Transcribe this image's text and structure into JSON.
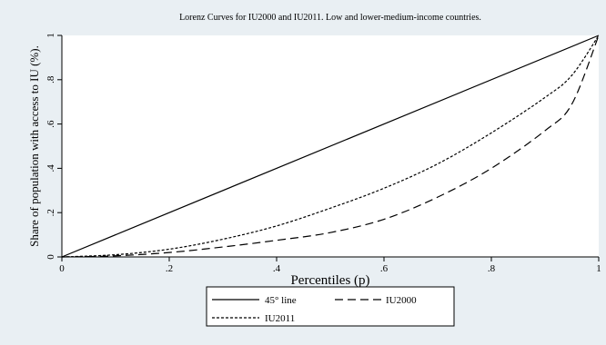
{
  "chart_data": {
    "type": "line",
    "title": "Lorenz Curves for IU2000 and IU2011. Low and lower-medium-income countries.",
    "xlabel": "Percentiles (p)",
    "ylabel": "Share of population with access to IU (%).",
    "xlim": [
      0,
      1
    ],
    "ylim": [
      0,
      1
    ],
    "xticks": [
      0,
      0.2,
      0.4,
      0.6,
      0.8,
      1
    ],
    "xtick_labels": [
      "0",
      ".2",
      ".4",
      ".6",
      ".8",
      "1"
    ],
    "yticks": [
      0,
      0.2,
      0.4,
      0.6,
      0.8,
      1
    ],
    "ytick_labels": [
      "0",
      ".2",
      ".4",
      ".6",
      ".8",
      "1"
    ],
    "grid": false,
    "legend_position": "bottom",
    "series": [
      {
        "name": "45° line",
        "style": "solid",
        "color": "#000000",
        "x": [
          0,
          1
        ],
        "y": [
          0,
          1
        ]
      },
      {
        "name": "IU2000",
        "style": "long-dash",
        "color": "#000000",
        "x": [
          0,
          0.1,
          0.2,
          0.3,
          0.4,
          0.5,
          0.6,
          0.7,
          0.8,
          0.9,
          0.95,
          1.0
        ],
        "y": [
          0,
          0.005,
          0.02,
          0.045,
          0.075,
          0.11,
          0.17,
          0.27,
          0.4,
          0.57,
          0.69,
          1.0
        ]
      },
      {
        "name": "IU2011",
        "style": "short-dash",
        "color": "#000000",
        "x": [
          0,
          0.1,
          0.2,
          0.3,
          0.4,
          0.5,
          0.6,
          0.7,
          0.8,
          0.9,
          0.95,
          1.0
        ],
        "y": [
          0,
          0.01,
          0.035,
          0.08,
          0.14,
          0.22,
          0.31,
          0.42,
          0.56,
          0.72,
          0.82,
          1.0
        ]
      }
    ]
  }
}
